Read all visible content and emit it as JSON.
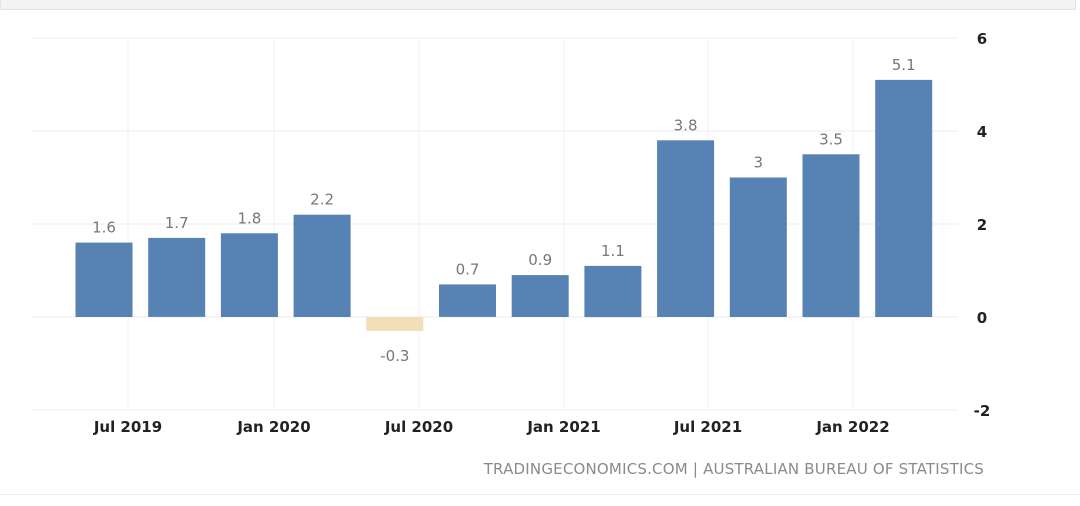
{
  "chart_data": {
    "type": "bar",
    "categories": [
      "2019-Q2",
      "2019-Q3",
      "2019-Q4",
      "2020-Q1",
      "2020-Q2",
      "2020-Q3",
      "2020-Q4",
      "2021-Q1",
      "2021-Q2",
      "2021-Q3",
      "2021-Q4",
      "2022-Q1"
    ],
    "values": [
      1.6,
      1.7,
      1.8,
      2.2,
      -0.3,
      0.7,
      0.9,
      1.1,
      3.8,
      3,
      3.5,
      5.1
    ],
    "value_labels": [
      "1.6",
      "1.7",
      "1.8",
      "2.2",
      "-0.3",
      "0.7",
      "0.9",
      "1.1",
      "3.8",
      "3",
      "3.5",
      "5.1"
    ],
    "x_tick_labels": [
      "Jul 2019",
      "Jan 2020",
      "Jul 2020",
      "Jan 2021",
      "Jul 2021",
      "Jan 2022"
    ],
    "y_ticks": [
      "6",
      "4",
      "2",
      "0",
      "-2"
    ],
    "y_tick_values": [
      6,
      4,
      2,
      0,
      -2
    ],
    "ylim": [
      -2,
      6
    ],
    "y_axis_side": "right",
    "grid": true,
    "title": "",
    "xlabel": "",
    "ylabel": "",
    "colors": {
      "positive": "#5682b4",
      "negative": "#f1dfb5",
      "value_label": "#777777",
      "tick_label": "#222222",
      "grid": "#ececec"
    }
  },
  "footer": {
    "source": "TRADINGECONOMICS.COM | AUSTRALIAN BUREAU OF STATISTICS"
  }
}
